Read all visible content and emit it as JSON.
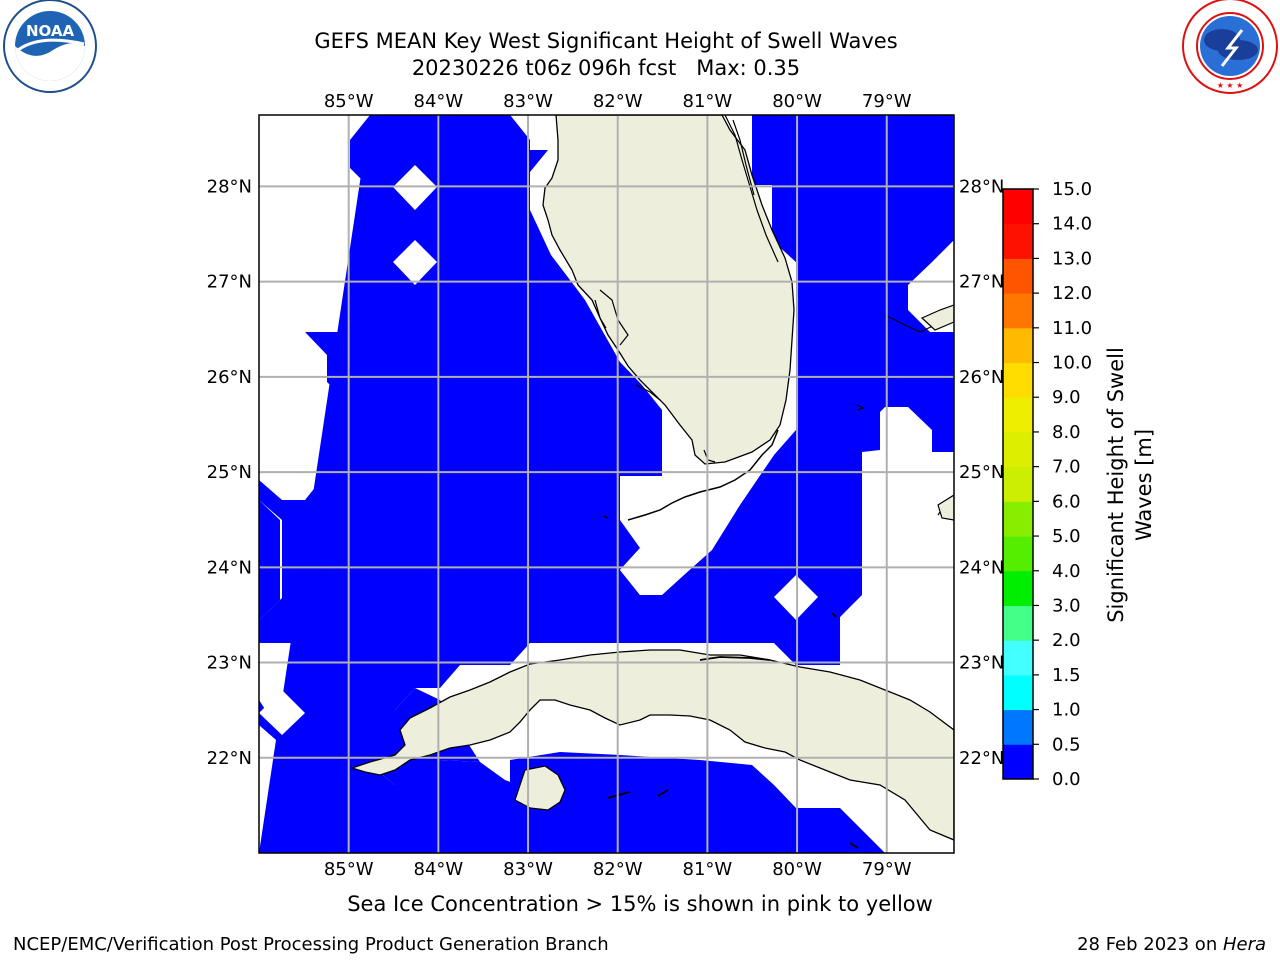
{
  "title": {
    "line1": "GEFS MEAN Key West Significant Height of Swell Waves",
    "line2": "20230226 t06z 096h fcst   Max: 0.35"
  },
  "logos": {
    "noaa": {
      "text": "NOAA",
      "ring_text": "NATIONAL OCEANIC AND ATMOSPHERIC ADMINISTRATION · U.S. DEPARTMENT OF COMMERCE"
    },
    "nws": {
      "ring_text": "NATIONAL WEATHER SERVICE"
    }
  },
  "map": {
    "projection": "cylindrical",
    "lon_range": [
      -86.0,
      -78.25
    ],
    "lat_range": [
      21.0,
      28.75
    ],
    "lon_ticks": [
      {
        "value": -85,
        "label": "85°W"
      },
      {
        "value": -84,
        "label": "84°W"
      },
      {
        "value": -83,
        "label": "83°W"
      },
      {
        "value": -82,
        "label": "82°W"
      },
      {
        "value": -81,
        "label": "81°W"
      },
      {
        "value": -80,
        "label": "80°W"
      },
      {
        "value": -79,
        "label": "79°W"
      }
    ],
    "lat_ticks": [
      {
        "value": 28,
        "label": "28°N"
      },
      {
        "value": 27,
        "label": "27°N"
      },
      {
        "value": 26,
        "label": "26°N"
      },
      {
        "value": 25,
        "label": "25°N"
      },
      {
        "value": 24,
        "label": "24°N"
      },
      {
        "value": 23,
        "label": "23°N"
      },
      {
        "value": 22,
        "label": "22°N"
      }
    ],
    "grid": true,
    "colors": {
      "ocean": "#0000ff",
      "land": "#eeeedd",
      "nodata": "#ffffff",
      "grid": "#b0b0b0",
      "coast": "#000000"
    },
    "regions": [
      "Gulf of Mexico",
      "Florida peninsula",
      "Florida Keys",
      "Bahamas",
      "Cuba",
      "Isla de la Juventud"
    ],
    "max_value": 0.35
  },
  "colorbar": {
    "label_line1": "Significant Height of Swell",
    "label_line2": "Waves [m]",
    "levels": [
      {
        "value": "0.0",
        "color": "#0000ff"
      },
      {
        "value": "0.5",
        "color": "#0077ff"
      },
      {
        "value": "1.0",
        "color": "#00dfff"
      },
      {
        "value": "1.5",
        "color": "#00ffff"
      },
      {
        "value": "2.0",
        "color": "#44ffff"
      },
      {
        "value": "2.5",
        "color": "#99ffff"
      },
      {
        "value": "3.0",
        "color": "#44ff88"
      },
      {
        "value": "3.5",
        "color": "#00ee00"
      },
      {
        "value": "4.0",
        "color": "#33ee00"
      },
      {
        "value": "4.5",
        "color": "#55ee00"
      },
      {
        "value": "5.0",
        "color": "#88ee00"
      },
      {
        "value": "5.5",
        "color": "#aaee00"
      },
      {
        "value": "6.0",
        "color": "#ccee00"
      },
      {
        "value": "6.5",
        "color": "#ddee00"
      },
      {
        "value": "7.0",
        "color": "#eeee00"
      },
      {
        "value": "7.5",
        "color": "#ffee00"
      },
      {
        "value": "8.0",
        "color": "#ffdd00"
      },
      {
        "value": "8.5",
        "color": "#ffbb00"
      },
      {
        "value": "9.0",
        "color": "#ff9900"
      },
      {
        "value": "9.5",
        "color": "#ff7700"
      },
      {
        "value": "10.0",
        "color": "#ff5500"
      },
      {
        "value": "10.5",
        "color": "#ff3300"
      },
      {
        "value": "11.0",
        "color": "#ff1100"
      },
      {
        "value": "11.5",
        "color": "#ff0000"
      }
    ],
    "tick_labels": [
      "0.0",
      "0.5",
      "1.0",
      "1.5",
      "2.0",
      "3.0",
      "4.0",
      "5.0",
      "6.0",
      "7.0",
      "8.0",
      "9.0",
      "10.0",
      "11.0",
      "12.0",
      "13.0",
      "14.0",
      "15.0"
    ],
    "min": 0.0,
    "max": 15.0
  },
  "note": "Sea Ice Concentration > 15% is shown in pink to yellow",
  "footer": {
    "left": "NCEP/EMC/Verification Post Processing Product Generation Branch",
    "right_date": "28 Feb 2023 on ",
    "right_host": "Hera"
  }
}
